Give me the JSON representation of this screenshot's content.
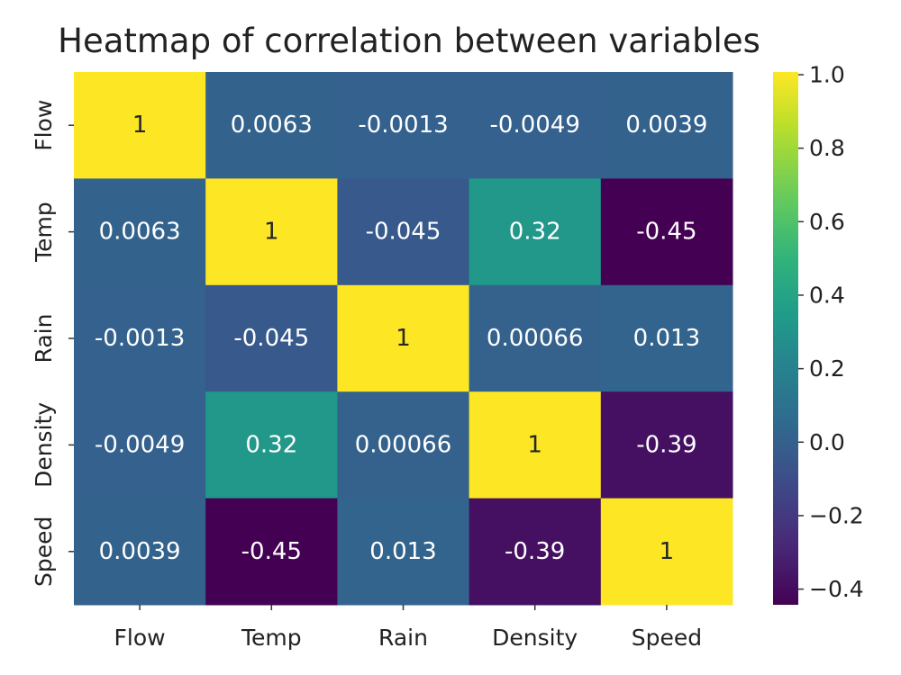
{
  "chart_data": {
    "type": "heatmap",
    "title": "Heatmap of correlation between variables",
    "x_categories": [
      "Flow",
      "Temp",
      "Rain",
      "Density",
      "Speed"
    ],
    "y_categories": [
      "Flow",
      "Temp",
      "Rain",
      "Density",
      "Speed"
    ],
    "values": [
      [
        1,
        0.0063,
        -0.0013,
        -0.0049,
        0.0039
      ],
      [
        0.0063,
        1,
        -0.045,
        0.32,
        -0.45
      ],
      [
        -0.0013,
        -0.045,
        1,
        0.00066,
        0.013
      ],
      [
        -0.0049,
        0.32,
        0.00066,
        1,
        -0.39
      ],
      [
        0.0039,
        -0.45,
        0.013,
        -0.39,
        1
      ]
    ],
    "labels": [
      [
        "1",
        "0.0063",
        "-0.0013",
        "-0.0049",
        "0.0039"
      ],
      [
        "0.0063",
        "1",
        "-0.045",
        "0.32",
        "-0.45"
      ],
      [
        "-0.0013",
        "-0.045",
        "1",
        "0.00066",
        "0.013"
      ],
      [
        "-0.0049",
        "0.32",
        "0.00066",
        "1",
        "-0.39"
      ],
      [
        "0.0039",
        "-0.45",
        "0.013",
        "-0.39",
        "1"
      ]
    ],
    "colormap": "viridis",
    "vmin": -0.45,
    "vmax": 1.0,
    "colorbar": {
      "ticks": [
        1.0,
        0.8,
        0.6,
        0.4,
        0.2,
        0.0,
        -0.2,
        -0.4
      ],
      "tick_labels": [
        "1.0",
        "0.8",
        "0.6",
        "0.4",
        "0.2",
        "0.0",
        "−0.2",
        "−0.4"
      ],
      "placement": "right"
    }
  }
}
